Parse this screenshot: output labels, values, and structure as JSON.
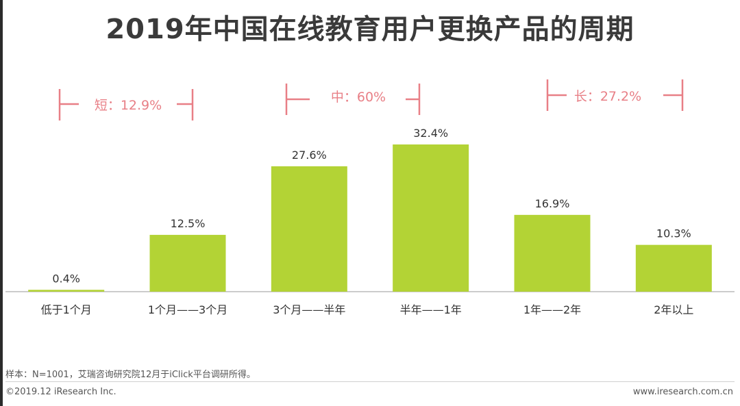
{
  "title": "2019年中国在线教育用户更换产品的周期",
  "brackets": [
    {
      "label": "短：12.9%"
    },
    {
      "label": "中：60%"
    },
    {
      "label": "长：27.2%"
    }
  ],
  "chart_data": {
    "type": "bar",
    "categories": [
      "低于1个月",
      "1个月——3个月",
      "3个月——半年",
      "半年——1年",
      "1年——2年",
      "2年以上"
    ],
    "values": [
      0.4,
      12.5,
      27.6,
      32.4,
      16.9,
      10.3
    ],
    "value_labels": [
      "0.4%",
      "12.5%",
      "27.6%",
      "32.4%",
      "16.9%",
      "10.3%"
    ],
    "ylim": [
      0,
      32.4
    ],
    "unit": "%",
    "bar_color": "#b3d335",
    "grid": false,
    "legend": "none"
  },
  "footer": {
    "note": "样本：N=1001，艾瑞咨询研究院12月于iClick平台调研所得。",
    "copyright": "©2019.12 iResearch Inc.",
    "url": "www.iresearch.com.cn"
  },
  "colors": {
    "bracket": "#e87f86",
    "bar": "#b3d335",
    "text": "#333333"
  }
}
